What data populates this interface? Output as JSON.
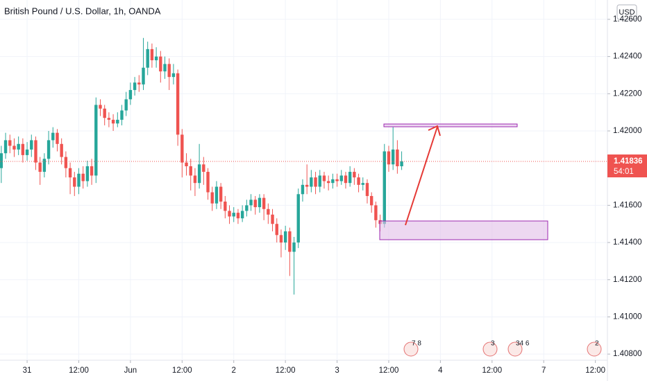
{
  "chart_data": {
    "type": "candlestick",
    "title": "British Pound / U.S. Dollar, 1h, OANDA",
    "currency": "USD",
    "up_color": "#26a69a",
    "down_color": "#ef5350",
    "open": [
      1.418,
      1.4188,
      1.4195,
      1.4192,
      1.419,
      1.4193,
      1.4187,
      1.419,
      1.4195,
      1.4183,
      1.4178,
      1.4185,
      1.4195,
      1.4199,
      1.4193,
      1.4186,
      1.418,
      1.4175,
      1.417,
      1.4177,
      1.4173,
      1.4181,
      1.4176,
      1.4214,
      1.4212,
      1.4207,
      1.4206,
      1.4204,
      1.4206,
      1.4211,
      1.4217,
      1.4222,
      1.4226,
      1.4225,
      1.4234,
      1.4244,
      1.4238,
      1.424,
      1.4232,
      1.4236,
      1.4229,
      1.4231,
      1.4198,
      1.4183,
      1.4181,
      1.4176,
      1.4172,
      1.4182,
      1.4178,
      1.4167,
      1.4161,
      1.417,
      1.4162,
      1.4157,
      1.4154,
      1.4156,
      1.4153,
      1.4157,
      1.416,
      1.4163,
      1.4159,
      1.4164,
      1.4158,
      1.4155,
      1.415,
      1.4144,
      1.414,
      1.4146,
      1.4135,
      1.414,
      1.4166,
      1.4171,
      1.417,
      1.4175,
      1.417,
      1.4176,
      1.4173,
      1.4172,
      1.4174,
      1.4173,
      1.4176,
      1.4172,
      1.4178,
      1.4175,
      1.4171,
      1.4172,
      1.4165,
      1.416,
      1.4152,
      1.415,
      1.4189,
      1.4182,
      1.419,
      1.4181
    ],
    "high": [
      1.4192,
      1.4199,
      1.4198,
      1.4196,
      1.4197,
      1.4196,
      1.4194,
      1.4198,
      1.4197,
      1.4186,
      1.4188,
      1.42,
      1.4202,
      1.4201,
      1.4196,
      1.4189,
      1.4183,
      1.4178,
      1.418,
      1.4181,
      1.4184,
      1.4185,
      1.4218,
      1.4217,
      1.4214,
      1.421,
      1.4209,
      1.421,
      1.4214,
      1.4221,
      1.4226,
      1.4229,
      1.423,
      1.425,
      1.4248,
      1.4247,
      1.4245,
      1.4243,
      1.424,
      1.4239,
      1.4236,
      1.4233,
      1.4201,
      1.4188,
      1.4185,
      1.418,
      1.4193,
      1.4186,
      1.418,
      1.417,
      1.4173,
      1.4172,
      1.4165,
      1.416,
      1.4159,
      1.4158,
      1.416,
      1.4163,
      1.4166,
      1.4165,
      1.4166,
      1.4166,
      1.4161,
      1.4158,
      1.4153,
      1.4147,
      1.4149,
      1.4148,
      1.4143,
      1.4169,
      1.4174,
      1.4182,
      1.4179,
      1.4178,
      1.4179,
      1.4178,
      1.4176,
      1.4177,
      1.4177,
      1.4179,
      1.4178,
      1.4181,
      1.418,
      1.4177,
      1.4175,
      1.4174,
      1.4167,
      1.4162,
      1.4155,
      1.4193,
      1.4192,
      1.4202,
      1.4195,
      1.4189
    ],
    "low": [
      1.4172,
      1.4185,
      1.4188,
      1.4186,
      1.4187,
      1.4183,
      1.4184,
      1.4186,
      1.4179,
      1.4171,
      1.4175,
      1.4182,
      1.4191,
      1.4189,
      1.4182,
      1.4175,
      1.4166,
      1.4165,
      1.4166,
      1.4169,
      1.417,
      1.4171,
      1.4172,
      1.4208,
      1.4203,
      1.4202,
      1.42,
      1.4202,
      1.4203,
      1.4208,
      1.4214,
      1.4219,
      1.4221,
      1.4222,
      1.423,
      1.4234,
      1.4234,
      1.4226,
      1.4228,
      1.4222,
      1.4225,
      1.4192,
      1.4175,
      1.4176,
      1.4168,
      1.4165,
      1.4169,
      1.4171,
      1.4163,
      1.4157,
      1.4158,
      1.4158,
      1.4153,
      1.415,
      1.4151,
      1.415,
      1.4151,
      1.4154,
      1.4157,
      1.4155,
      1.4156,
      1.4152,
      1.415,
      1.4146,
      1.414,
      1.4132,
      1.4136,
      1.4122,
      1.4112,
      1.4137,
      1.4162,
      1.4166,
      1.4167,
      1.4166,
      1.4167,
      1.4169,
      1.4168,
      1.4169,
      1.417,
      1.4171,
      1.4169,
      1.417,
      1.4171,
      1.4167,
      1.4168,
      1.4161,
      1.4156,
      1.4148,
      1.4146,
      1.4148,
      1.4178,
      1.4179,
      1.4177,
      1.4179
    ],
    "close": [
      1.4188,
      1.4195,
      1.4192,
      1.419,
      1.4193,
      1.4187,
      1.419,
      1.4195,
      1.4183,
      1.4178,
      1.4185,
      1.4195,
      1.4199,
      1.4193,
      1.4186,
      1.418,
      1.4175,
      1.417,
      1.4177,
      1.4173,
      1.4181,
      1.4176,
      1.4214,
      1.4212,
      1.4207,
      1.4206,
      1.4204,
      1.4206,
      1.4211,
      1.4217,
      1.4222,
      1.4226,
      1.4225,
      1.4234,
      1.4244,
      1.4238,
      1.424,
      1.4232,
      1.4236,
      1.4229,
      1.4231,
      1.4198,
      1.4183,
      1.4181,
      1.4176,
      1.4172,
      1.4182,
      1.4178,
      1.4167,
      1.4161,
      1.417,
      1.4162,
      1.4157,
      1.4154,
      1.4156,
      1.4153,
      1.4157,
      1.416,
      1.4163,
      1.4159,
      1.4164,
      1.4158,
      1.4155,
      1.415,
      1.4144,
      1.414,
      1.4146,
      1.4135,
      1.414,
      1.4166,
      1.4171,
      1.417,
      1.4175,
      1.417,
      1.4176,
      1.4173,
      1.4172,
      1.4174,
      1.4173,
      1.4176,
      1.4172,
      1.4178,
      1.4175,
      1.4171,
      1.4172,
      1.4165,
      1.416,
      1.4152,
      1.415,
      1.4189,
      1.4182,
      1.419,
      1.4181,
      1.41836
    ],
    "xlim": [
      -0.3,
      140.8
    ],
    "xticks": [
      {
        "value": 6,
        "label": "31"
      },
      {
        "value": 18,
        "label": "12:00"
      },
      {
        "value": 30,
        "label": "Jun"
      },
      {
        "value": 42,
        "label": "12:00"
      },
      {
        "value": 54,
        "label": "2"
      },
      {
        "value": 66,
        "label": "12:00"
      },
      {
        "value": 78,
        "label": "3"
      },
      {
        "value": 90,
        "label": "12:00"
      },
      {
        "value": 102,
        "label": "4"
      },
      {
        "value": 114,
        "label": "12:00"
      },
      {
        "value": 126,
        "label": "7"
      },
      {
        "value": 138,
        "label": "12:00"
      }
    ],
    "ylim": [
      1.40767,
      1.42704
    ],
    "yticks": [
      {
        "value": 1.408,
        "label": "1.40800"
      },
      {
        "value": 1.41,
        "label": "1.41000"
      },
      {
        "value": 1.412,
        "label": "1.41200"
      },
      {
        "value": 1.414,
        "label": "1.41400"
      },
      {
        "value": 1.416,
        "label": "1.41600"
      },
      {
        "value": 1.42,
        "label": "1.42000"
      },
      {
        "value": 1.422,
        "label": "1.42200"
      },
      {
        "value": 1.424,
        "label": "1.42400"
      },
      {
        "value": 1.426,
        "label": "1.42600"
      }
    ],
    "grid": true,
    "last_price": {
      "value": 1.41836,
      "label": "1.41836"
    },
    "countdown": "54:01",
    "events": [
      "7 8",
      "3",
      "34 6",
      "2"
    ]
  }
}
